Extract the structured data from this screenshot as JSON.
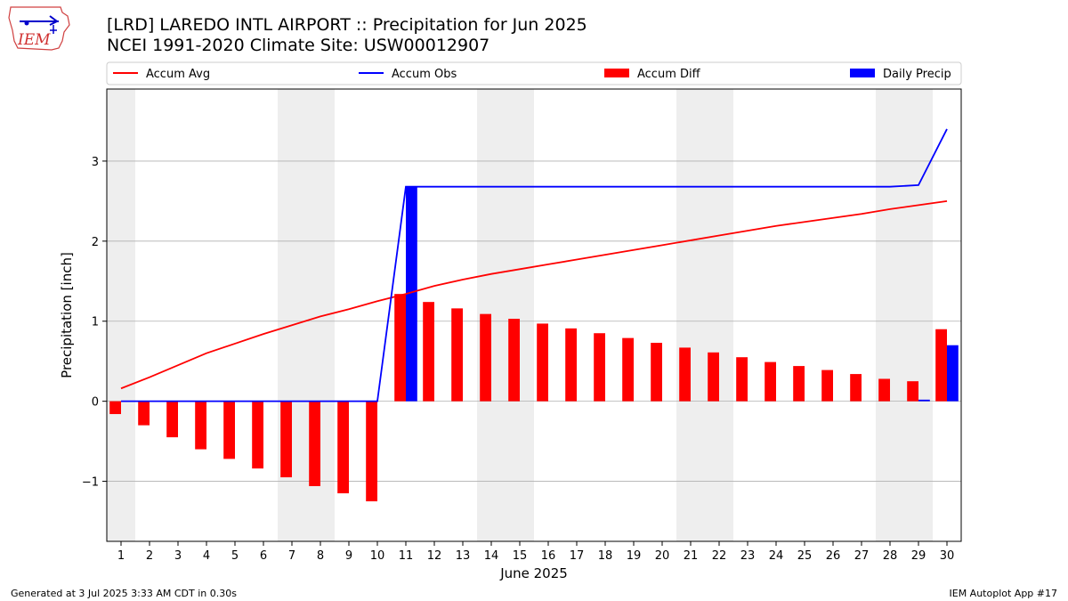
{
  "header": {
    "title_line1": "[LRD] LAREDO INTL AIRPORT :: Precipitation for Jun 2025",
    "title_line2": "NCEI 1991-2020 Climate Site: USW00012907"
  },
  "logo": {
    "text": "IEM"
  },
  "footer": {
    "left": "Generated at 3 Jul 2025 3:33 AM CDT in 0.30s",
    "right": "IEM Autoplot App #17"
  },
  "colors": {
    "avg": "#ff0000",
    "obs": "#0000ff",
    "diff": "#ff0000",
    "daily": "#0000ff",
    "weekend_band": "#eeeeee",
    "grid": "#b0b0b0"
  },
  "chart_data": {
    "type": "bar",
    "xlabel": "June 2025",
    "ylabel": "Precipitation [inch]",
    "ylim": [
      -1.75,
      3.9
    ],
    "yticks": [
      -1,
      0,
      1,
      2,
      3
    ],
    "ytick_labels": [
      "−1",
      "0",
      "1",
      "2",
      "3"
    ],
    "grid": true,
    "legend_placement": "top",
    "legend": [
      "Accum Avg",
      "Accum Obs",
      "Accum Diff",
      "Daily Precip"
    ],
    "days": [
      1,
      2,
      3,
      4,
      5,
      6,
      7,
      8,
      9,
      10,
      11,
      12,
      13,
      14,
      15,
      16,
      17,
      18,
      19,
      20,
      21,
      22,
      23,
      24,
      25,
      26,
      27,
      28,
      29,
      30
    ],
    "weekend_days": [
      1,
      7,
      8,
      14,
      15,
      21,
      22,
      28,
      29
    ],
    "series": [
      {
        "name": "Accum Avg",
        "kind": "line",
        "values": [
          0.16,
          0.3,
          0.45,
          0.6,
          0.72,
          0.84,
          0.95,
          1.06,
          1.15,
          1.25,
          1.34,
          1.44,
          1.52,
          1.59,
          1.65,
          1.71,
          1.77,
          1.83,
          1.89,
          1.95,
          2.01,
          2.07,
          2.13,
          2.19,
          2.24,
          2.29,
          2.34,
          2.4,
          2.45,
          2.5
        ]
      },
      {
        "name": "Accum Obs",
        "kind": "line",
        "values": [
          0,
          0,
          0,
          0,
          0,
          0,
          0,
          0,
          0,
          0,
          2.68,
          2.68,
          2.68,
          2.68,
          2.68,
          2.68,
          2.68,
          2.68,
          2.68,
          2.68,
          2.68,
          2.68,
          2.68,
          2.68,
          2.68,
          2.68,
          2.68,
          2.68,
          2.7,
          3.4
        ]
      },
      {
        "name": "Accum Diff",
        "kind": "bar",
        "values": [
          -0.16,
          -0.3,
          -0.45,
          -0.6,
          -0.72,
          -0.84,
          -0.95,
          -1.06,
          -1.15,
          -1.25,
          1.34,
          1.24,
          1.16,
          1.09,
          1.03,
          0.97,
          0.91,
          0.85,
          0.79,
          0.73,
          0.67,
          0.61,
          0.55,
          0.49,
          0.44,
          0.39,
          0.34,
          0.28,
          0.25,
          0.9
        ]
      },
      {
        "name": "Daily Precip",
        "kind": "bar",
        "values": [
          0,
          0,
          0,
          0,
          0,
          0,
          0,
          0,
          0,
          0,
          2.68,
          0,
          0,
          0,
          0,
          0,
          0,
          0,
          0,
          0,
          0,
          0,
          0,
          0,
          0,
          0,
          0,
          0,
          0.02,
          0.7
        ]
      }
    ]
  }
}
